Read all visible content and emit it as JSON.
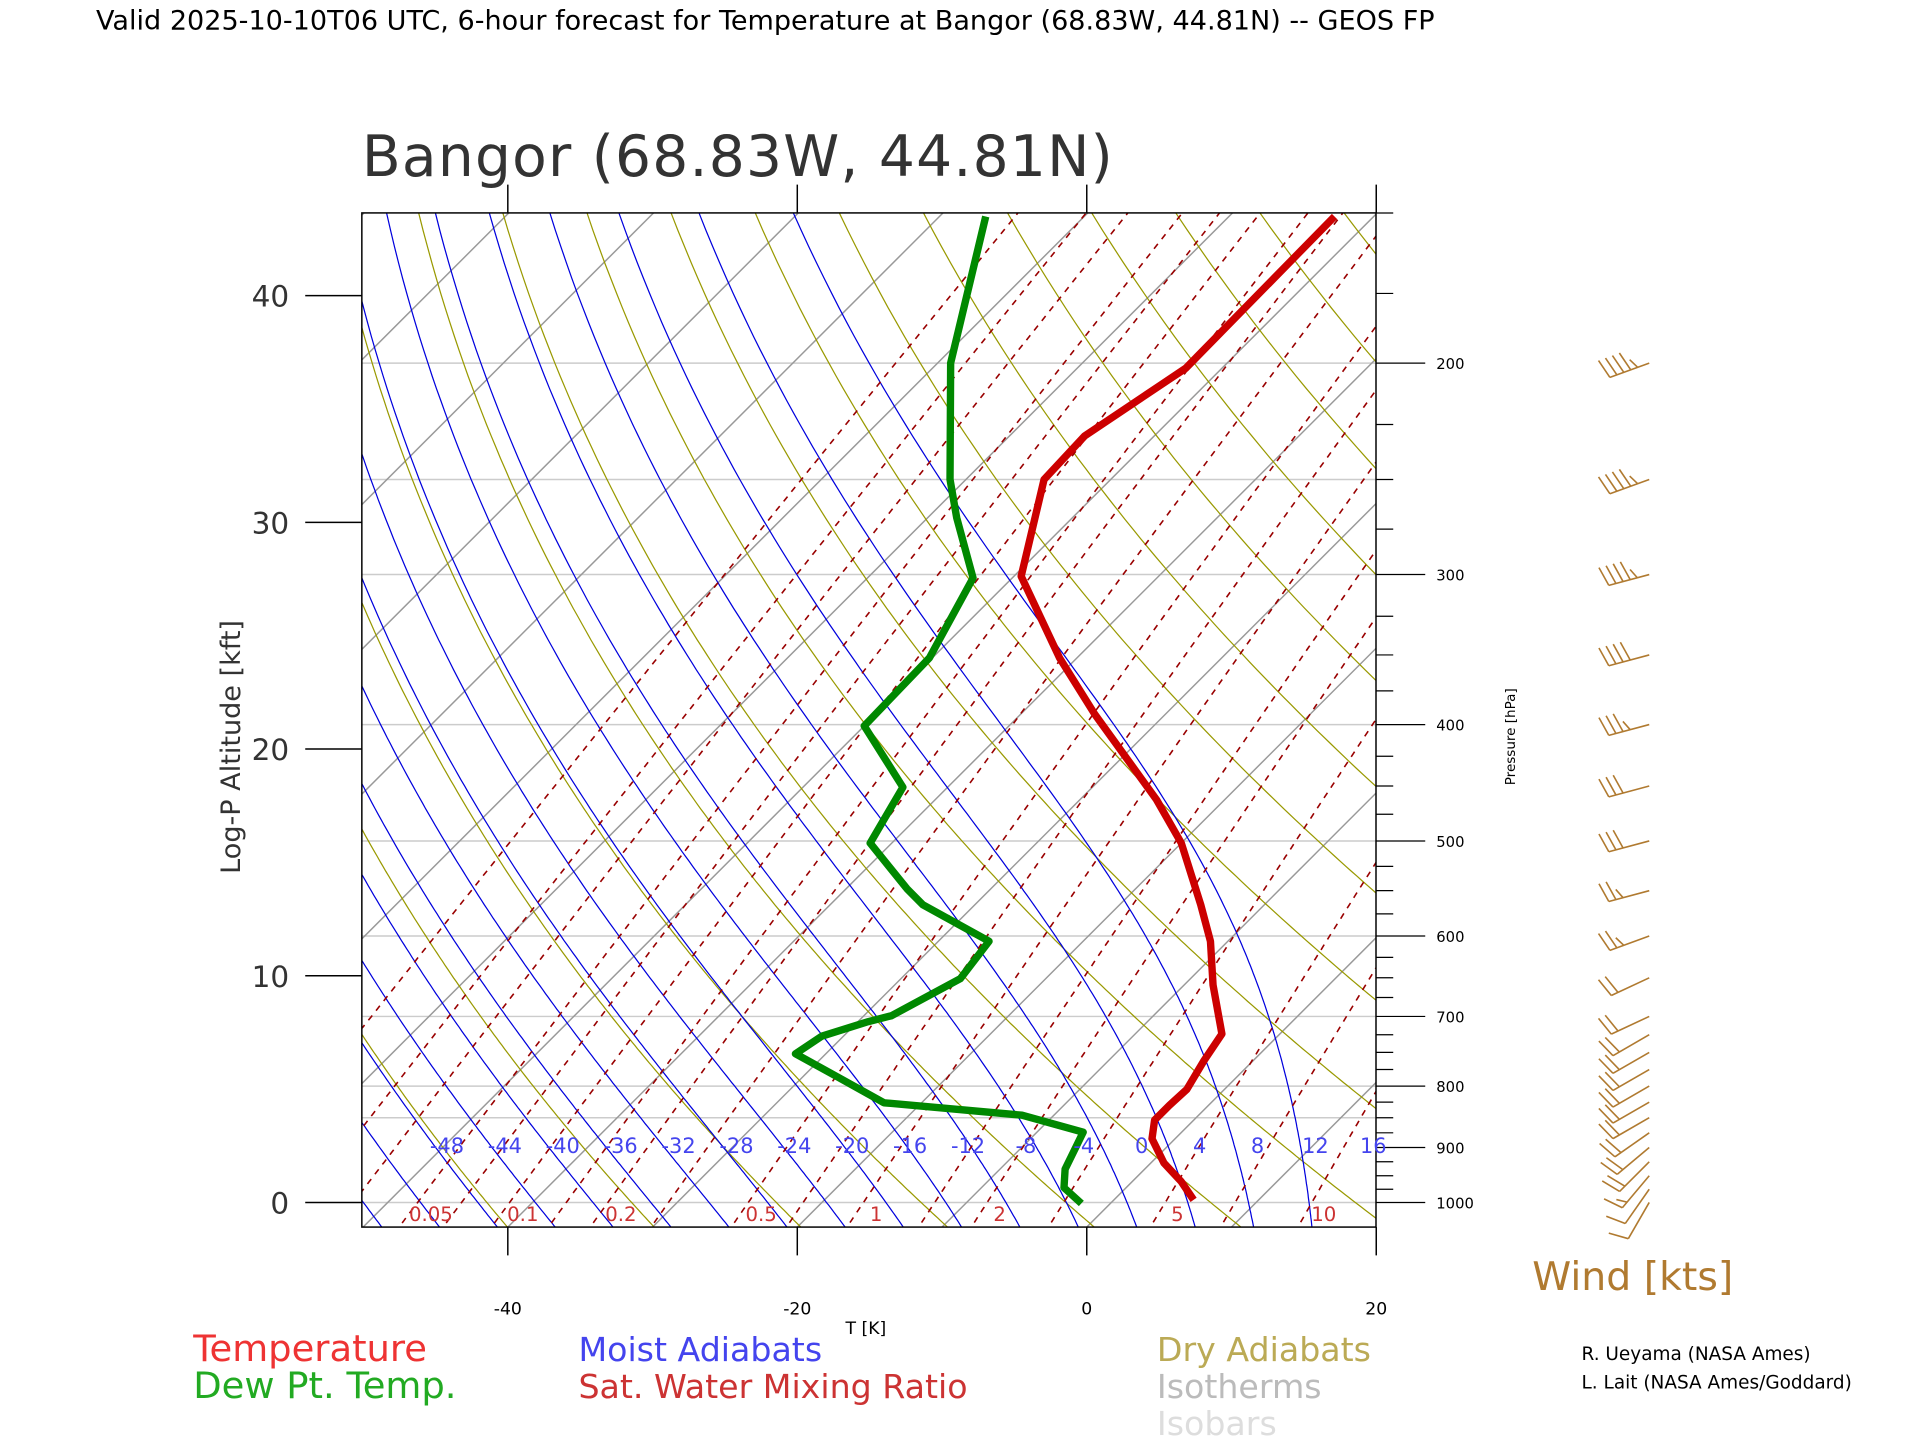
{
  "chart_data": {
    "type": "line",
    "header_title": "Valid 2025-10-10T06 UTC, 6-hour forecast for Temperature at Bangor (68.83W, 44.81N) -- GEOS FP",
    "title": "Bangor (68.83W, 44.81N)",
    "xlabel": "T [K]",
    "ylabel_left": "Log-P Altitude [kft]",
    "ylabel_right": "Pressure [hPa]",
    "x_ticks": [
      "-40",
      "-20",
      "0",
      "20"
    ],
    "x_tick_values": [
      -40,
      -20,
      0,
      20
    ],
    "xlim": [
      -50,
      20
    ],
    "altitude_ticks": [
      "0",
      "10",
      "20",
      "30",
      "40"
    ],
    "altitude_tick_values": [
      0,
      10,
      20,
      30,
      40
    ],
    "pressure_labels": [
      "200",
      "300",
      "400",
      "500",
      "600",
      "700",
      "800",
      "900",
      "1000"
    ],
    "pressure_label_values": [
      200,
      300,
      400,
      500,
      600,
      700,
      800,
      900,
      1000
    ],
    "pressure_minor": [
      150,
      175,
      225,
      250,
      275,
      325,
      350,
      375,
      425,
      450,
      475,
      525,
      550,
      575,
      625,
      650,
      675,
      725,
      750,
      775,
      825,
      850,
      875,
      925,
      950,
      975
    ],
    "isobars": [
      200,
      250,
      300,
      400,
      500,
      600,
      700,
      800,
      850,
      1000
    ],
    "ylim_hpa": [
      1050,
      150
    ],
    "series": [
      {
        "name": "Temperature",
        "color": "#cc0000",
        "pressure": [
          995,
          961,
          927,
          885,
          854,
          830,
          805,
          762,
          724,
          659,
          606,
          565,
          502,
          462,
          392,
          352,
          301,
          250,
          230,
          202,
          151
        ],
        "temperature": [
          5.5,
          3.4,
          0.9,
          -1.6,
          -2.7,
          -2.7,
          -2.6,
          -3.4,
          -4.0,
          -8.0,
          -11.2,
          -14.4,
          -20.0,
          -24.7,
          -34.9,
          -41.2,
          -49.5,
          -54.6,
          -54.8,
          -52.5,
          -52.7
        ]
      },
      {
        "name": "Dew Pt. Temp.",
        "color": "#008800",
        "pressure": [
          1002,
          972,
          938,
          874,
          846,
          826,
          786,
          752,
          727,
          707,
          699,
          651,
          606,
          565,
          548,
          502,
          451,
          401,
          352,
          302,
          269,
          250,
          200,
          151
        ],
        "temperature": [
          -2.0,
          -4.3,
          -5.5,
          -6.8,
          -12.2,
          -22.6,
          -27.6,
          -32.1,
          -31.5,
          -29.3,
          -28.1,
          -25.9,
          -26.5,
          -33.6,
          -35.8,
          -41.5,
          -43.1,
          -50.0,
          -50.2,
          -52.7,
          -58.0,
          -61.1,
          -69.1,
          -76.8
        ]
      }
    ],
    "moist_adiabat_labels": [
      "-48",
      "-44",
      "-40",
      "-36",
      "-32",
      "-28",
      "-24",
      "-20",
      "-16",
      "-12",
      "-8",
      "-4",
      "0",
      "4",
      "8",
      "12",
      "16"
    ],
    "moist_adiabat_values": [
      -48,
      -44,
      -40,
      -36,
      -32,
      -28,
      -24,
      -20,
      -16,
      -12,
      -8,
      -4,
      0,
      4,
      8,
      12,
      16
    ],
    "mixing_ratio_labels": [
      "0.05",
      "0.1",
      "0.2",
      "0.5",
      "1",
      "2",
      "5",
      "10"
    ],
    "mixing_ratio_label_values": [
      0.05,
      0.1,
      0.2,
      0.5,
      1,
      2,
      5,
      10
    ],
    "mixing_ratio_lines": [
      0.01,
      0.02,
      0.03,
      0.05,
      0.07,
      0.1,
      0.15,
      0.2,
      0.3,
      0.5,
      0.7,
      1,
      1.5,
      2,
      3,
      5,
      7,
      10,
      15,
      20,
      30
    ],
    "dry_adiabat_thetas_k": [
      230,
      240,
      250,
      260,
      270,
      280,
      290,
      300,
      310,
      320,
      330,
      340,
      350,
      360,
      370,
      380,
      390,
      400,
      410,
      420,
      430,
      440,
      450,
      460,
      470,
      480
    ],
    "isotherm_step_c": 10,
    "wind_label": "Wind [kts]",
    "wind_barbs": [
      {
        "pressure": 200,
        "speed_kts": 45,
        "direction_deg": 250
      },
      {
        "pressure": 250,
        "speed_kts": 45,
        "direction_deg": 250
      },
      {
        "pressure": 300,
        "speed_kts": 45,
        "direction_deg": 255
      },
      {
        "pressure": 350,
        "speed_kts": 40,
        "direction_deg": 255
      },
      {
        "pressure": 400,
        "speed_kts": 35,
        "direction_deg": 255
      },
      {
        "pressure": 450,
        "speed_kts": 30,
        "direction_deg": 255
      },
      {
        "pressure": 500,
        "speed_kts": 30,
        "direction_deg": 255
      },
      {
        "pressure": 550,
        "speed_kts": 25,
        "direction_deg": 255
      },
      {
        "pressure": 600,
        "speed_kts": 25,
        "direction_deg": 250
      },
      {
        "pressure": 650,
        "speed_kts": 20,
        "direction_deg": 245
      },
      {
        "pressure": 700,
        "speed_kts": 20,
        "direction_deg": 245
      },
      {
        "pressure": 725,
        "speed_kts": 20,
        "direction_deg": 240
      },
      {
        "pressure": 750,
        "speed_kts": 20,
        "direction_deg": 240
      },
      {
        "pressure": 775,
        "speed_kts": 20,
        "direction_deg": 240
      },
      {
        "pressure": 800,
        "speed_kts": 20,
        "direction_deg": 240
      },
      {
        "pressure": 825,
        "speed_kts": 20,
        "direction_deg": 240
      },
      {
        "pressure": 850,
        "speed_kts": 20,
        "direction_deg": 240
      },
      {
        "pressure": 875,
        "speed_kts": 20,
        "direction_deg": 235
      },
      {
        "pressure": 900,
        "speed_kts": 20,
        "direction_deg": 230
      },
      {
        "pressure": 925,
        "speed_kts": 20,
        "direction_deg": 225
      },
      {
        "pressure": 950,
        "speed_kts": 15,
        "direction_deg": 220
      },
      {
        "pressure": 975,
        "speed_kts": 10,
        "direction_deg": 215
      },
      {
        "pressure": 1000,
        "speed_kts": 10,
        "direction_deg": 210
      }
    ],
    "legend": {
      "temperature": "Temperature",
      "dewpoint": "Dew Pt. Temp.",
      "moist": "Moist Adiabats",
      "mixing": "Sat. Water Mixing Ratio",
      "dry": "Dry Adiabats",
      "isotherms": "Isotherms",
      "isobars": "Isobars"
    },
    "credits": [
      "R. Ueyama (NASA Ames)",
      "L. Lait (NASA Ames/Goddard)"
    ],
    "colors": {
      "temperature": "#cc0000",
      "dewpoint": "#008800",
      "moist": "#0000dd",
      "mixing": "#990000",
      "dry": "#999900",
      "isotherm": "#999999",
      "isobar": "#cccccc",
      "wind": "#b07a30"
    }
  }
}
